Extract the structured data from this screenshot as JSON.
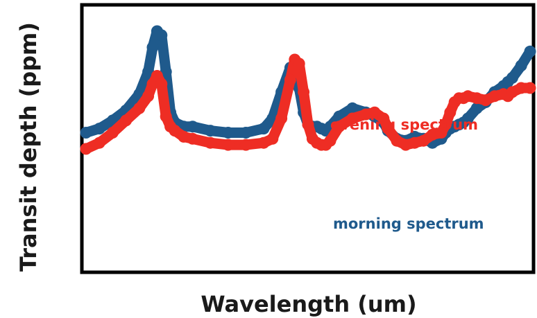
{
  "chart_data": {
    "type": "line",
    "title": "",
    "xlabel": "Wavelength (um)",
    "ylabel": "Transit depth (ppm)",
    "xlim": [
      0,
      100
    ],
    "ylim": [
      0,
      100
    ],
    "ticks": "none",
    "grid": false,
    "legend": "none",
    "series": [
      {
        "name": "morning spectrum",
        "color": "#1f5a8c",
        "x": [
          0,
          3,
          6,
          9,
          12,
          14,
          15,
          16,
          17,
          18,
          19,
          20,
          22,
          24,
          28,
          32,
          36,
          40,
          42,
          44,
          46,
          47,
          48,
          49,
          50,
          51,
          52,
          53,
          54,
          55,
          57,
          60,
          63,
          65,
          67,
          68,
          70,
          72,
          74,
          76,
          78,
          80,
          81,
          82,
          83,
          84,
          85,
          86,
          88,
          90,
          92,
          94,
          95,
          96,
          98,
          100
        ],
        "y": [
          50,
          52,
          56,
          61,
          69,
          80,
          92,
          100,
          98,
          80,
          60,
          55,
          53,
          53,
          51,
          50,
          50,
          52,
          57,
          70,
          82,
          83,
          72,
          60,
          54,
          53,
          53,
          52,
          51,
          53,
          58,
          62,
          60,
          58,
          55,
          51,
          47,
          46,
          48,
          47,
          45,
          47,
          50,
          52,
          53,
          54,
          55,
          57,
          62,
          65,
          70,
          73,
          75,
          77,
          83,
          90
        ]
      },
      {
        "name": "evening spectrum",
        "color": "#ee2d24",
        "x": [
          0,
          3,
          6,
          9,
          12,
          14,
          15,
          16,
          17,
          18,
          19,
          20,
          22,
          24,
          28,
          32,
          36,
          40,
          42,
          44,
          46,
          47,
          48,
          49,
          50,
          51,
          52,
          53,
          54,
          55,
          57,
          60,
          63,
          65,
          67,
          68,
          70,
          72,
          74,
          76,
          78,
          80,
          81,
          82,
          83,
          84,
          85,
          86,
          88,
          90,
          92,
          94,
          95,
          96,
          98,
          100
        ],
        "y": [
          42,
          45,
          50,
          56,
          62,
          68,
          74,
          78,
          74,
          58,
          53,
          51,
          48,
          47,
          45,
          44,
          44,
          45,
          47,
          57,
          76,
          86,
          84,
          70,
          54,
          47,
          45,
          44,
          44,
          46,
          53,
          57,
          59,
          60,
          57,
          52,
          46,
          44,
          45,
          46,
          49,
          50,
          54,
          60,
          65,
          67,
          67,
          68,
          67,
          66,
          68,
          69,
          68,
          70,
          72,
          72
        ]
      }
    ],
    "annotations": [
      {
        "text": "evening spectrum",
        "color": "#ee2d24",
        "series": "evening spectrum"
      },
      {
        "text": "morning spectrum",
        "color": "#1f5a8c",
        "series": "morning spectrum"
      }
    ]
  }
}
